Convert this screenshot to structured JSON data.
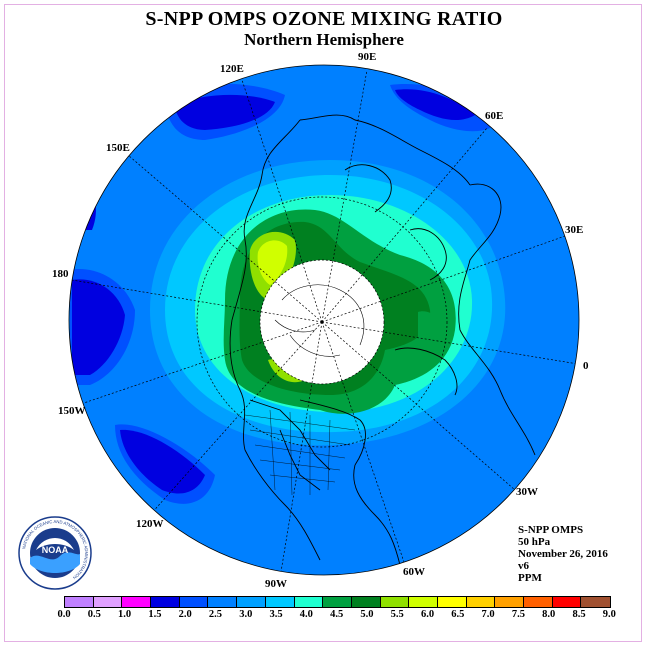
{
  "title": "S-NPP OMPS OZONE MIXING RATIO",
  "subtitle": "Northern Hemisphere",
  "longitude_labels": [
    "90E",
    "60E",
    "30E",
    "0",
    "30W",
    "60W",
    "90W",
    "120W",
    "150W",
    "180",
    "150E",
    "120E"
  ],
  "info": {
    "instrument": "S-NPP OMPS",
    "level": "50 hPa",
    "date": "November 26, 2016",
    "version": "v6",
    "units": "PPM"
  },
  "colorbar": {
    "ticks": [
      "0.0",
      "0.5",
      "1.0",
      "1.5",
      "2.0",
      "2.5",
      "3.0",
      "3.5",
      "4.0",
      "4.5",
      "5.0",
      "5.5",
      "6.0",
      "6.5",
      "7.0",
      "7.5",
      "8.0",
      "8.5",
      "9.0"
    ],
    "colors": [
      "#c080ff",
      "#e0a0ff",
      "#ff00ff",
      "#0000e0",
      "#0050ff",
      "#0080ff",
      "#00a0ff",
      "#00c8ff",
      "#20ffd0",
      "#00a040",
      "#008020",
      "#90e000",
      "#d0ff00",
      "#ffff00",
      "#ffd000",
      "#ffa000",
      "#ff6000",
      "#ff0000",
      "#a05030"
    ]
  },
  "logo": {
    "text": "NOAA",
    "ring_text": "NATIONAL OCEANIC AND ATMOSPHERIC ADMINISTRATION"
  },
  "legend_colors": {
    "lvl_1_5": "#0000e0",
    "lvl_2_0": "#0050ff",
    "lvl_2_5": "#0080ff",
    "lvl_3_0": "#00a0ff",
    "lvl_3_5": "#00c8ff",
    "lvl_4_0": "#20ffd0",
    "lvl_4_5": "#00a040",
    "lvl_5_0": "#008020",
    "lvl_5_5": "#90e000",
    "lvl_6_0": "#d0ff00"
  }
}
